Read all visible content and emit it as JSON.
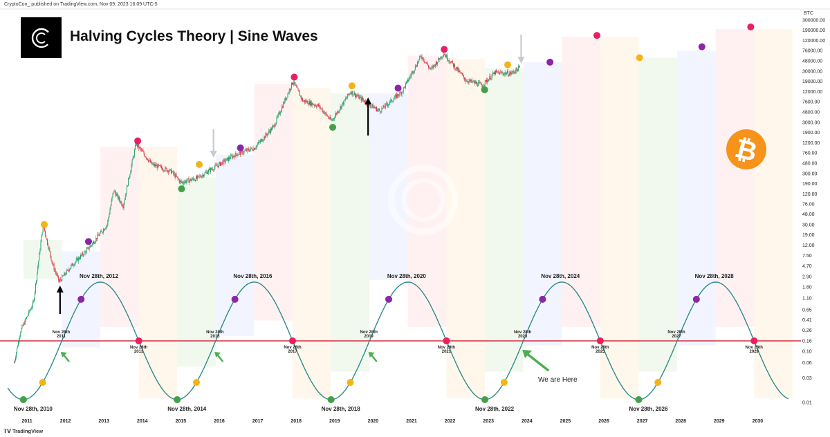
{
  "header": {
    "publisher_line": "CryptoCon_ published on TradingView.com, Nov 09, 2023 16:09 UTC-5",
    "title": "Halving Cycles Theory | Sine Waves",
    "footer": "TradingView",
    "unit": "BTC"
  },
  "colors": {
    "accumulation": "#e8f5e5",
    "early_bull": "#e9efff",
    "bull": "#ffe8ea",
    "bear": "#fff1e0",
    "sine": "#2e8b8b",
    "reference_line": "#d62a3d",
    "dot_peak": "#e91e63",
    "dot_bottom": "#43a047",
    "dot_mid": "#f2b518",
    "dot_purple": "#8e24aa",
    "candle_up": "#26a269",
    "candle_down": "#e0364a",
    "btc_logo": "#f7931a"
  },
  "chart_data": {
    "type": "line",
    "y_scale": "log",
    "y_unit": "BTC",
    "y_tick_labels": [
      "300000.00",
      "190000.00",
      "120000.00",
      "76000.00",
      "48000.00",
      "30000.00",
      "19000.00",
      "12000.00",
      "7600.00",
      "4800.00",
      "3000.00",
      "1900.00",
      "1200.00",
      "760.00",
      "480.00",
      "300.00",
      "190.00",
      "120.00",
      "76.00",
      "48.00",
      "30.00",
      "19.00",
      "12.00",
      "7.50",
      "4.70",
      "2.90",
      "1.80",
      "1.10",
      "0.65",
      "0.41",
      "0.26",
      "0.16",
      "0.10",
      "0.06",
      "0.03",
      "0.01"
    ],
    "x_tick_labels": [
      "2011",
      "2012",
      "2013",
      "2014",
      "2015",
      "2016",
      "2017",
      "2018",
      "2019",
      "2020",
      "2021",
      "2022",
      "2023",
      "2024",
      "2025",
      "2026",
      "2027",
      "2028",
      "2029",
      "2030"
    ],
    "reference_level": 0.16,
    "price_path": [
      {
        "t": "2010-09",
        "price": 0.06
      },
      {
        "t": "2010-11",
        "price": 0.25
      },
      {
        "t": "2011-03",
        "price": 0.9
      },
      {
        "t": "2011-06",
        "price": 30
      },
      {
        "t": "2011-09",
        "price": 5
      },
      {
        "t": "2011-11",
        "price": 2.3
      },
      {
        "t": "2012-03",
        "price": 4.8
      },
      {
        "t": "2012-08",
        "price": 10
      },
      {
        "t": "2013-02",
        "price": 30
      },
      {
        "t": "2013-04",
        "price": 140
      },
      {
        "t": "2013-07",
        "price": 70
      },
      {
        "t": "2013-11",
        "price": 1150
      },
      {
        "t": "2014-04",
        "price": 450
      },
      {
        "t": "2014-10",
        "price": 330
      },
      {
        "t": "2015-01",
        "price": 200
      },
      {
        "t": "2015-06",
        "price": 240
      },
      {
        "t": "2015-11",
        "price": 380
      },
      {
        "t": "2016-06",
        "price": 700
      },
      {
        "t": "2016-12",
        "price": 950
      },
      {
        "t": "2017-06",
        "price": 2500
      },
      {
        "t": "2017-12",
        "price": 19000
      },
      {
        "t": "2018-03",
        "price": 8000
      },
      {
        "t": "2018-08",
        "price": 6300
      },
      {
        "t": "2018-12",
        "price": 3200
      },
      {
        "t": "2019-06",
        "price": 12000
      },
      {
        "t": "2019-10",
        "price": 8000
      },
      {
        "t": "2020-03",
        "price": 5000
      },
      {
        "t": "2020-10",
        "price": 12000
      },
      {
        "t": "2021-04",
        "price": 60000
      },
      {
        "t": "2021-07",
        "price": 32000
      },
      {
        "t": "2021-11",
        "price": 67000
      },
      {
        "t": "2022-06",
        "price": 20000
      },
      {
        "t": "2022-11",
        "price": 16000
      },
      {
        "t": "2023-03",
        "price": 28000
      },
      {
        "t": "2023-08",
        "price": 27000
      },
      {
        "t": "2023-11",
        "price": 36000
      }
    ],
    "sine_wave": {
      "zero_crossings_up": [
        "Nov 28th, 2011",
        "Nov 28th, 2015",
        "Nov 28th, 2019",
        "Nov 28th, 2023",
        "Nov 28th, 2027"
      ],
      "zero_crossings_down": [
        "Nov 28th, 2013",
        "Nov 28th, 2017",
        "Nov 28th, 2021",
        "Nov 28th, 2025",
        "Nov 28th, 2029"
      ],
      "peaks": [
        "Nov 28th, 2012",
        "Nov 28th, 2016",
        "Nov 28th, 2020",
        "Nov 28th, 2024",
        "Nov 28th, 2028"
      ],
      "troughs": [
        "Nov 28th, 2010",
        "Nov 28th, 2014",
        "Nov 28th, 2018",
        "Nov 28th, 2022",
        "Nov 28th, 2026"
      ]
    },
    "annotations": {
      "we_are_here": "We are Here"
    }
  },
  "labels": {
    "peaks": [
      "Nov 28th, 2012",
      "Nov 28th, 2016",
      "Nov 28th, 2020",
      "Nov 28th, 2024",
      "Nov 28th, 2028"
    ],
    "troughs": [
      "Nov 28th, 2010",
      "Nov 28th, 2014",
      "Nov 28th, 2018",
      "Nov 28th, 2022",
      "Nov 28th, 2026"
    ],
    "crossings": [
      {
        "l1": "Nov 28th",
        "l2": "2011"
      },
      {
        "l1": "Nov 28th",
        "l2": "2013"
      },
      {
        "l1": "Nov 28th",
        "l2": "2015"
      },
      {
        "l1": "Nov 28th",
        "l2": "2017"
      },
      {
        "l1": "Nov 28th",
        "l2": "2019"
      },
      {
        "l1": "Nov 28th",
        "l2": "2021"
      },
      {
        "l1": "Nov 28th",
        "l2": "2023"
      },
      {
        "l1": "Nov 28th",
        "l2": "2025"
      },
      {
        "l1": "Nov 28th",
        "l2": "2027"
      },
      {
        "l1": "Nov 28th",
        "l2": "2029"
      }
    ],
    "we_are_here": "We are Here"
  }
}
